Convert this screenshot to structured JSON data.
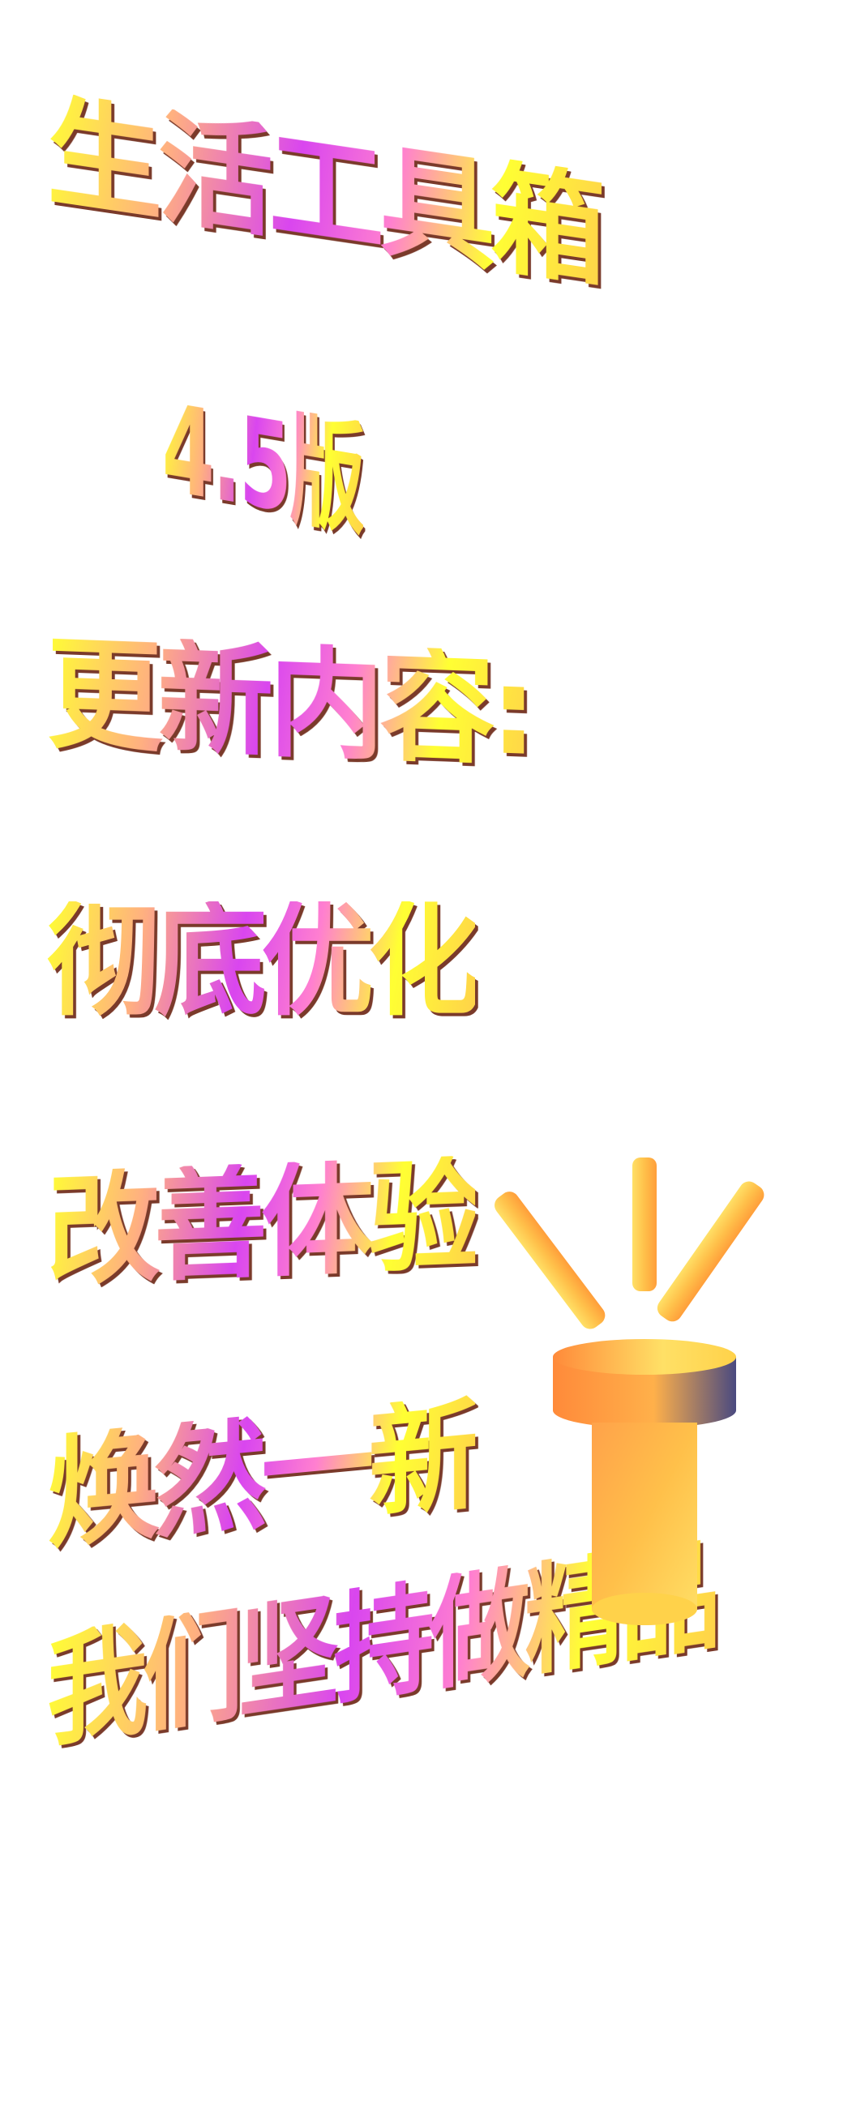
{
  "title": "生活工具箱",
  "version": "4.5版",
  "changelog_heading": "更新内容:",
  "changelog_lines": [
    "彻底优化",
    "改善体验",
    "焕然一新"
  ],
  "slogan": "我们坚持做精品",
  "colors": {
    "text_gradient": [
      "#ffff33",
      "#ffb080",
      "#d946ef",
      "#ff7fd0",
      "#ffd24a"
    ],
    "text_shadow": "#7a3a2a",
    "lamp_body": "#ffc04a",
    "lamp_cap_top": "#ffe066",
    "lamp_cap_side_dark": "#4a4a80",
    "lamp_rays": "#ffc04a"
  },
  "icons": [
    "spotlight-icon"
  ]
}
